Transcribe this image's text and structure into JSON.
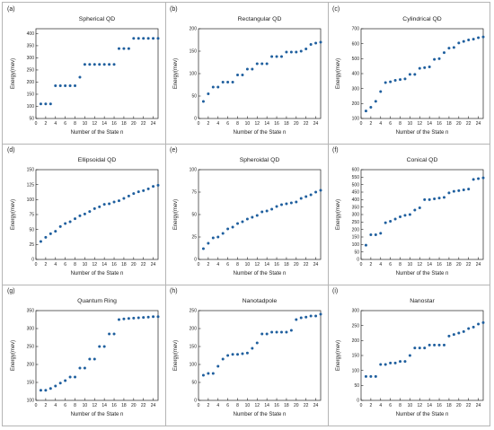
{
  "chart_data": [
    {
      "label": "(a)",
      "type": "scatter",
      "title": "Spherical QD",
      "xlabel": "Number of the State n",
      "ylabel": "Energy(mev)",
      "xlim": [
        0,
        25
      ],
      "ylim": [
        50,
        420
      ],
      "xticks": [
        0,
        2,
        4,
        6,
        8,
        10,
        12,
        14,
        16,
        18,
        20,
        22,
        24
      ],
      "yticks": [
        50,
        100,
        150,
        200,
        250,
        300,
        350,
        400
      ],
      "x": [
        1,
        2,
        3,
        4,
        5,
        6,
        7,
        8,
        9,
        10,
        11,
        12,
        13,
        14,
        15,
        16,
        17,
        18,
        19,
        20,
        21,
        22,
        23,
        24,
        25
      ],
      "y": [
        110,
        110,
        110,
        185,
        185,
        185,
        185,
        185,
        220,
        273,
        273,
        273,
        273,
        273,
        273,
        273,
        338,
        338,
        338,
        380,
        380,
        380,
        380,
        380,
        380
      ]
    },
    {
      "label": "(b)",
      "type": "scatter",
      "title": "Rectangular QD",
      "xlabel": "Number of the State n",
      "ylabel": "Energy(mev)",
      "xlim": [
        0,
        25
      ],
      "ylim": [
        0,
        200
      ],
      "xticks": [
        0,
        2,
        4,
        6,
        8,
        10,
        12,
        14,
        16,
        18,
        20,
        22,
        24
      ],
      "yticks": [
        0,
        50,
        100,
        150,
        200
      ],
      "x": [
        1,
        2,
        3,
        4,
        5,
        6,
        7,
        8,
        9,
        10,
        11,
        12,
        13,
        14,
        15,
        16,
        17,
        18,
        19,
        20,
        21,
        22,
        23,
        24,
        25
      ],
      "y": [
        38,
        55,
        70,
        70,
        81,
        81,
        81,
        97,
        97,
        110,
        110,
        122,
        122,
        122,
        138,
        138,
        138,
        148,
        148,
        148,
        150,
        155,
        165,
        168,
        170
      ]
    },
    {
      "label": "(c)",
      "type": "scatter",
      "title": "Cylindrical QD",
      "xlabel": "Number of the State n",
      "ylabel": "Energy(mev)",
      "xlim": [
        0,
        25
      ],
      "ylim": [
        100,
        700
      ],
      "xticks": [
        0,
        2,
        4,
        6,
        8,
        10,
        12,
        14,
        16,
        18,
        20,
        22,
        24
      ],
      "yticks": [
        100,
        200,
        300,
        400,
        500,
        600,
        700
      ],
      "x": [
        1,
        2,
        3,
        4,
        5,
        6,
        7,
        8,
        9,
        10,
        11,
        12,
        13,
        14,
        15,
        16,
        17,
        18,
        19,
        20,
        21,
        22,
        23,
        24,
        25
      ],
      "y": [
        150,
        175,
        215,
        280,
        340,
        345,
        355,
        360,
        365,
        395,
        395,
        435,
        440,
        445,
        495,
        500,
        540,
        570,
        575,
        605,
        615,
        625,
        630,
        640,
        645
      ]
    },
    {
      "label": "(d)",
      "type": "scatter",
      "title": "Ellipsoidal QD",
      "xlabel": "Number of the State n",
      "ylabel": "Energy(mev)",
      "xlim": [
        0,
        25
      ],
      "ylim": [
        0,
        150
      ],
      "xticks": [
        0,
        2,
        4,
        6,
        8,
        10,
        12,
        14,
        16,
        18,
        20,
        22,
        24
      ],
      "yticks": [
        0,
        25,
        50,
        75,
        100,
        125,
        150
      ],
      "x": [
        1,
        2,
        3,
        4,
        5,
        6,
        7,
        8,
        9,
        10,
        11,
        12,
        13,
        14,
        15,
        16,
        17,
        18,
        19,
        20,
        21,
        22,
        23,
        24,
        25
      ],
      "y": [
        30,
        37,
        43,
        47,
        55,
        60,
        63,
        68,
        73,
        76,
        80,
        85,
        88,
        92,
        93,
        96,
        98,
        102,
        106,
        110,
        113,
        115,
        118,
        122,
        124
      ]
    },
    {
      "label": "(e)",
      "type": "scatter",
      "title": "Spheroidal QD",
      "xlabel": "Number of the State n",
      "ylabel": "Energy(mev)",
      "xlim": [
        0,
        25
      ],
      "ylim": [
        0,
        100
      ],
      "xticks": [
        0,
        2,
        4,
        6,
        8,
        10,
        12,
        14,
        16,
        18,
        20,
        22,
        24
      ],
      "yticks": [
        0,
        25,
        50,
        75,
        100
      ],
      "x": [
        1,
        2,
        3,
        4,
        5,
        6,
        7,
        8,
        9,
        10,
        11,
        12,
        13,
        14,
        15,
        16,
        17,
        18,
        19,
        20,
        21,
        22,
        23,
        24,
        25
      ],
      "y": [
        12,
        18,
        24,
        25,
        29,
        34,
        36,
        40,
        42,
        45,
        47,
        49,
        53,
        54,
        56,
        59,
        61,
        62,
        63,
        64,
        68,
        70,
        72,
        75,
        77
      ]
    },
    {
      "label": "(f)",
      "type": "scatter",
      "title": "Conical QD",
      "xlabel": "Number of the State n",
      "ylabel": "Energy(mev)",
      "xlim": [
        0,
        25
      ],
      "ylim": [
        0,
        600
      ],
      "xticks": [
        0,
        2,
        4,
        6,
        8,
        10,
        12,
        14,
        16,
        18,
        20,
        22,
        24
      ],
      "yticks": [
        0,
        50,
        100,
        150,
        200,
        250,
        300,
        350,
        400,
        450,
        500,
        550,
        600
      ],
      "x": [
        1,
        2,
        3,
        4,
        5,
        6,
        7,
        8,
        9,
        10,
        11,
        12,
        13,
        14,
        15,
        16,
        17,
        18,
        19,
        20,
        21,
        22,
        23,
        24,
        25
      ],
      "y": [
        95,
        165,
        165,
        175,
        245,
        255,
        270,
        285,
        295,
        300,
        330,
        345,
        400,
        400,
        405,
        410,
        415,
        445,
        455,
        460,
        465,
        470,
        535,
        540,
        545
      ]
    },
    {
      "label": "(g)",
      "type": "scatter",
      "title": "Quantum Ring",
      "xlabel": "Number of the State n",
      "ylabel": "Energy(mev)",
      "xlim": [
        0,
        25
      ],
      "ylim": [
        100,
        350
      ],
      "xticks": [
        0,
        2,
        4,
        6,
        8,
        10,
        12,
        14,
        16,
        18,
        20,
        22,
        24
      ],
      "yticks": [
        100,
        150,
        200,
        250,
        300,
        350
      ],
      "x": [
        1,
        2,
        3,
        4,
        5,
        6,
        7,
        8,
        9,
        10,
        11,
        12,
        13,
        14,
        15,
        16,
        17,
        18,
        19,
        20,
        21,
        22,
        23,
        24,
        25
      ],
      "y": [
        128,
        128,
        133,
        140,
        148,
        155,
        165,
        165,
        190,
        190,
        215,
        215,
        250,
        250,
        285,
        285,
        325,
        327,
        328,
        329,
        330,
        331,
        332,
        333,
        333
      ]
    },
    {
      "label": "(h)",
      "type": "scatter",
      "title": "Nanotadpole",
      "xlabel": "Number of the State n",
      "ylabel": "Energy(mev)",
      "xlim": [
        0,
        25
      ],
      "ylim": [
        0,
        250
      ],
      "xticks": [
        0,
        2,
        4,
        6,
        8,
        10,
        12,
        14,
        16,
        18,
        20,
        22,
        24
      ],
      "yticks": [
        0,
        50,
        100,
        150,
        200,
        250
      ],
      "x": [
        1,
        2,
        3,
        4,
        5,
        6,
        7,
        8,
        9,
        10,
        11,
        12,
        13,
        14,
        15,
        16,
        17,
        18,
        19,
        20,
        21,
        22,
        23,
        24,
        25
      ],
      "y": [
        70,
        75,
        75,
        95,
        115,
        125,
        128,
        128,
        130,
        132,
        145,
        160,
        185,
        185,
        190,
        190,
        190,
        190,
        195,
        225,
        230,
        232,
        235,
        235,
        240
      ]
    },
    {
      "label": "(i)",
      "type": "scatter",
      "title": "Nanostar",
      "xlabel": "Number of the State n",
      "ylabel": "Energy(mev)",
      "xlim": [
        0,
        25
      ],
      "ylim": [
        0,
        300
      ],
      "xticks": [
        0,
        2,
        4,
        6,
        8,
        10,
        12,
        14,
        16,
        18,
        20,
        22,
        24
      ],
      "yticks": [
        0,
        50,
        100,
        150,
        200,
        250,
        300
      ],
      "x": [
        1,
        2,
        3,
        4,
        5,
        6,
        7,
        8,
        9,
        10,
        11,
        12,
        13,
        14,
        15,
        16,
        17,
        18,
        19,
        20,
        21,
        22,
        23,
        24,
        25
      ],
      "y": [
        80,
        80,
        80,
        120,
        120,
        125,
        125,
        130,
        130,
        150,
        175,
        175,
        175,
        185,
        185,
        185,
        185,
        215,
        220,
        225,
        230,
        240,
        245,
        255,
        260
      ]
    }
  ],
  "style": {
    "marker_color": "#1f5f9e",
    "axis_color": "#222222",
    "grid": false
  }
}
